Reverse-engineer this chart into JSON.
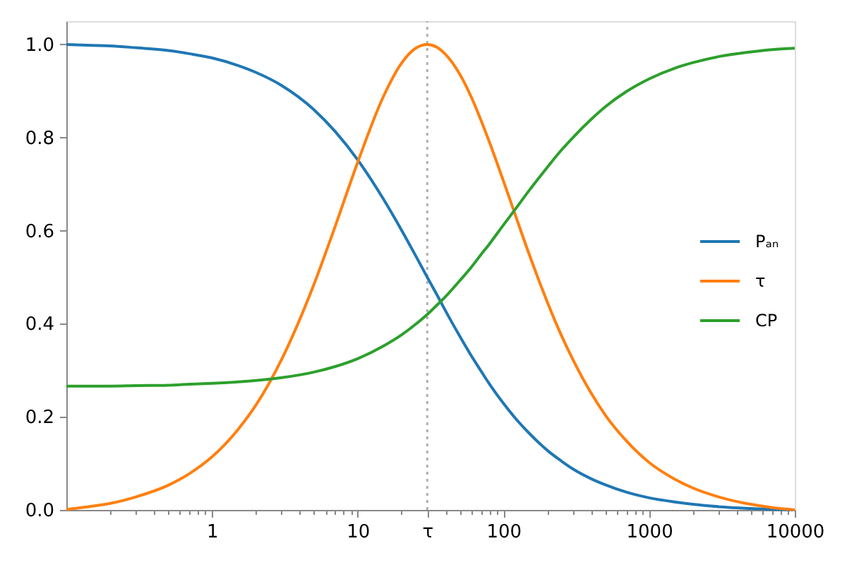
{
  "chart_data": {
    "type": "line",
    "x": [
      0.1,
      0.15,
      0.2,
      0.3,
      0.5,
      0.7,
      1,
      1.5,
      2,
      3,
      5,
      7,
      10,
      15,
      20,
      25,
      30,
      35,
      40,
      50,
      60,
      70,
      80,
      100,
      120,
      150,
      200,
      250,
      300,
      400,
      500,
      700,
      1000,
      1500,
      2000,
      3000,
      5000,
      7000,
      10000
    ],
    "series": [
      {
        "name": "Pₐₙ",
        "color": "#1f77b4",
        "values": [
          1.0,
          0.998,
          0.997,
          0.993,
          0.987,
          0.98,
          0.971,
          0.955,
          0.94,
          0.912,
          0.86,
          0.813,
          0.752,
          0.668,
          0.601,
          0.546,
          0.5,
          0.462,
          0.428,
          0.374,
          0.332,
          0.299,
          0.271,
          0.229,
          0.198,
          0.165,
          0.128,
          0.105,
          0.088,
          0.067,
          0.054,
          0.038,
          0.026,
          0.017,
          0.012,
          0.007,
          0.003,
          0.001,
          0.0
        ]
      },
      {
        "name": "τ",
        "color": "#ff7f0e",
        "values": [
          0.001,
          0.008,
          0.014,
          0.028,
          0.053,
          0.078,
          0.114,
          0.172,
          0.225,
          0.323,
          0.484,
          0.609,
          0.747,
          0.888,
          0.96,
          0.992,
          1.0,
          0.994,
          0.979,
          0.937,
          0.888,
          0.838,
          0.791,
          0.707,
          0.636,
          0.55,
          0.447,
          0.375,
          0.323,
          0.251,
          0.204,
          0.148,
          0.102,
          0.066,
          0.047,
          0.028,
          0.012,
          0.005,
          0.0
        ]
      },
      {
        "name": "CP",
        "color": "#2ca02c",
        "values": [
          0.266,
          0.266,
          0.266,
          0.267,
          0.268,
          0.27,
          0.272,
          0.275,
          0.278,
          0.284,
          0.296,
          0.308,
          0.325,
          0.352,
          0.376,
          0.399,
          0.42,
          0.44,
          0.458,
          0.492,
          0.521,
          0.548,
          0.571,
          0.612,
          0.645,
          0.686,
          0.736,
          0.773,
          0.8,
          0.839,
          0.866,
          0.899,
          0.926,
          0.949,
          0.961,
          0.974,
          0.984,
          0.989,
          0.992
        ]
      }
    ],
    "log": "x",
    "xlim": [
      0.1,
      10000
    ],
    "xticks": [
      {
        "value": 0.2,
        "label": null
      },
      {
        "value": 0.3,
        "label": null
      },
      {
        "value": 0.4,
        "label": null
      },
      {
        "value": 0.5,
        "label": null
      },
      {
        "value": 0.6,
        "label": null
      },
      {
        "value": 0.7,
        "label": null
      },
      {
        "value": 0.8,
        "label": null
      },
      {
        "value": 0.9,
        "label": null
      },
      1,
      {
        "value": 2,
        "label": null
      },
      {
        "value": 3,
        "label": null
      },
      {
        "value": 4,
        "label": null
      },
      {
        "value": 5,
        "label": null
      },
      {
        "value": 6,
        "label": null
      },
      {
        "value": 7,
        "label": null
      },
      {
        "value": 8,
        "label": null
      },
      {
        "value": 9,
        "label": null
      },
      10,
      {
        "value": 20,
        "label": null
      },
      {
        "value": 30,
        "label": "τ"
      },
      {
        "value": 40,
        "label": null
      },
      {
        "value": 50,
        "label": null
      },
      {
        "value": 60,
        "label": null
      },
      {
        "value": 70,
        "label": null
      },
      {
        "value": 80,
        "label": null
      },
      {
        "value": 90,
        "label": null
      },
      100,
      {
        "value": 200,
        "label": null
      },
      {
        "value": 300,
        "label": null
      },
      {
        "value": 400,
        "label": null
      },
      {
        "value": 500,
        "label": null
      },
      {
        "value": 600,
        "label": null
      },
      {
        "value": 700,
        "label": null
      },
      {
        "value": 800,
        "label": null
      },
      {
        "value": 900,
        "label": null
      },
      1000,
      {
        "value": 2000,
        "label": null
      },
      {
        "value": 3000,
        "label": null
      },
      {
        "value": 4000,
        "label": null
      },
      {
        "value": 5000,
        "label": null
      },
      {
        "value": 6000,
        "label": null
      },
      {
        "value": 7000,
        "label": null
      },
      {
        "value": 8000,
        "label": null
      },
      {
        "value": 9000,
        "label": null
      },
      10000
    ],
    "ylim": [
      0,
      1.05
    ],
    "yticks": [
      {
        "value": 0,
        "label": "0.0"
      },
      0.2,
      0.4,
      0.6,
      0.8,
      {
        "value": 1,
        "label": "1.0"
      }
    ],
    "ref_lines": [
      {
        "axis": "x",
        "value": 30,
        "color": "#b0b0b0",
        "line_style": "dotted"
      }
    ],
    "legend": "right"
  }
}
